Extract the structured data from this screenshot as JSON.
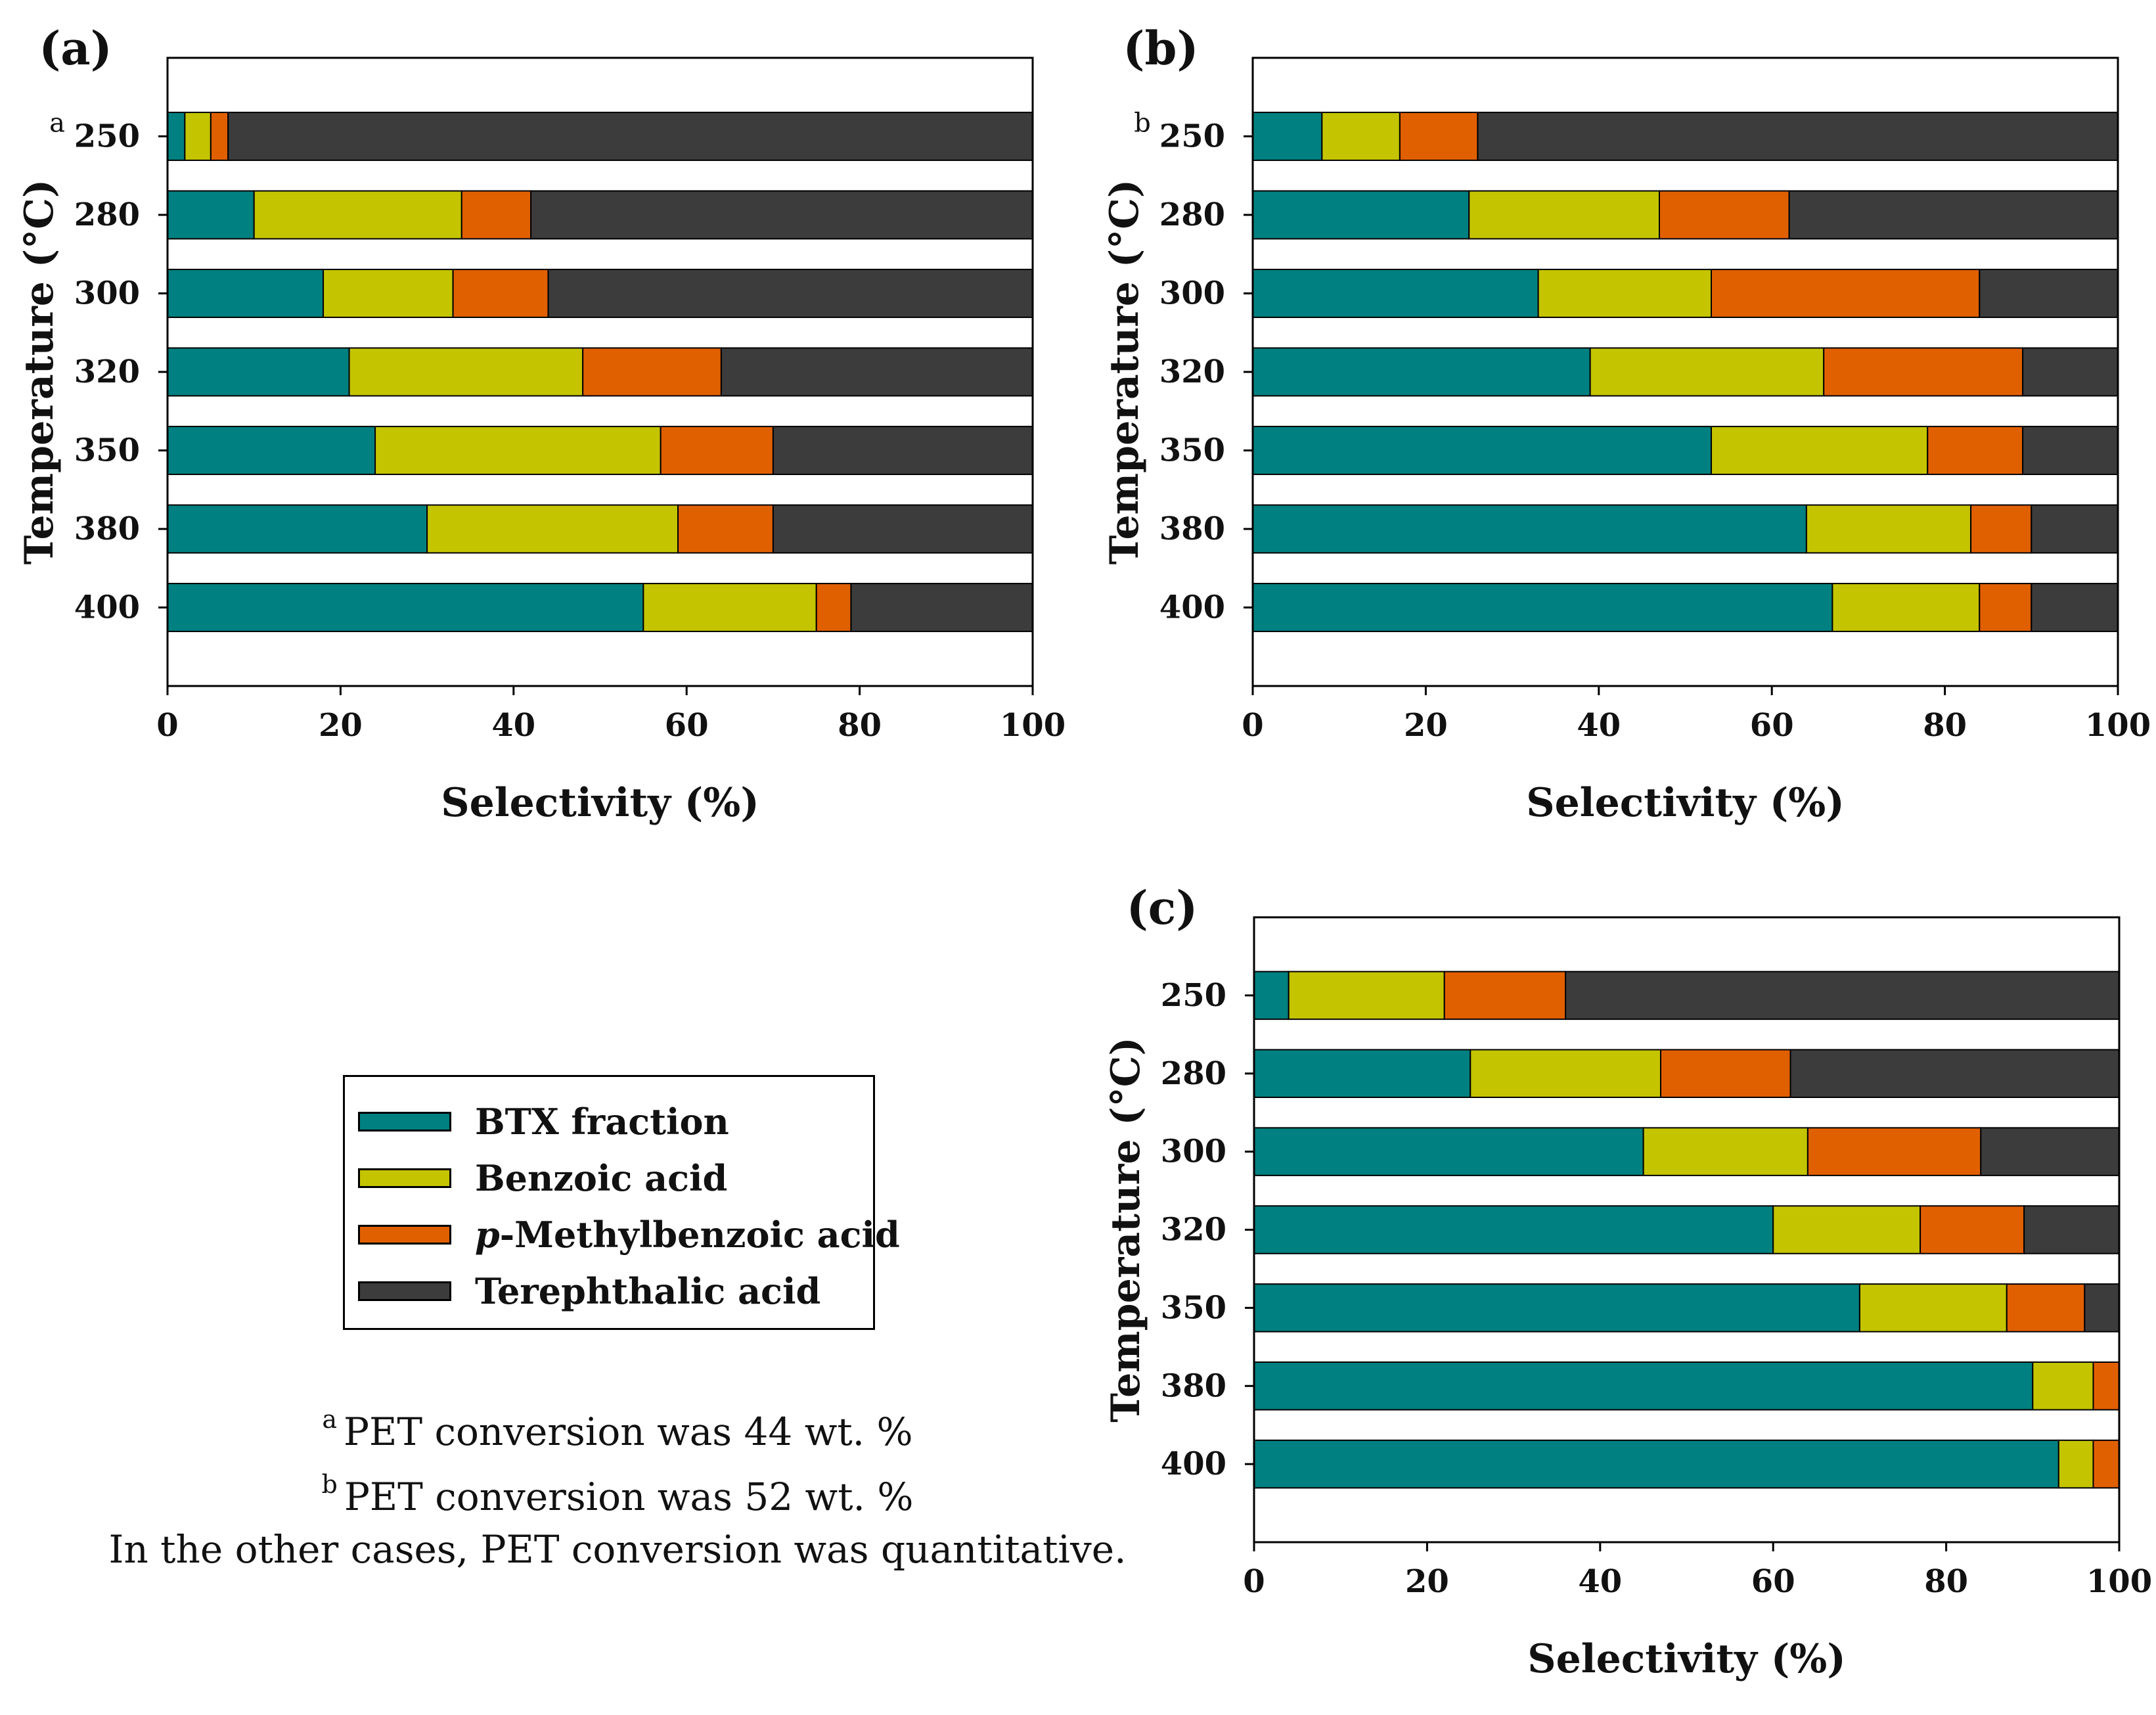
{
  "series_colors": {
    "BTX fraction": "#008080",
    "Benzoic acid": "#C4C400",
    "p-Methylbenzoic acid": "#E06000",
    "Terephthalic acid": "#3C3C3C"
  },
  "legend": {
    "items": [
      {
        "prefix": "",
        "text": "BTX fraction",
        "color": "#008080"
      },
      {
        "prefix": "",
        "text": "Benzoic acid",
        "color": "#C4C400"
      },
      {
        "prefix": "p",
        "text": "-Methylbenzoic acid",
        "color": "#E06000"
      },
      {
        "prefix": "",
        "text": "Terephthalic acid",
        "color": "#3C3C3C"
      }
    ]
  },
  "notes": {
    "a_mark": "a",
    "a_text": "PET conversion was 44 wt. %",
    "b_mark": "b",
    "b_text": "PET conversion was 52 wt. %",
    "other_text": "In the other cases, PET conversion was quantitative."
  },
  "chart_data": [
    {
      "panel": "(a)",
      "type": "bar",
      "orientation": "horizontal",
      "stacked": true,
      "xlabel": "Selectivity (%)",
      "ylabel": "Temperature (°C)",
      "xlim": [
        0,
        100
      ],
      "xticks": [
        "0",
        "20",
        "40",
        "60",
        "80",
        "100"
      ],
      "categories": [
        "250",
        "280",
        "300",
        "320",
        "350",
        "380",
        "400"
      ],
      "category_marks": [
        "a",
        "",
        "",
        "",
        "",
        "",
        ""
      ],
      "series": [
        {
          "name": "BTX fraction",
          "values": [
            2,
            10,
            18,
            21,
            24,
            30,
            55
          ]
        },
        {
          "name": "Benzoic acid",
          "values": [
            3,
            24,
            15,
            27,
            33,
            29,
            20
          ]
        },
        {
          "name": "p-Methylbenzoic acid",
          "values": [
            2,
            8,
            11,
            16,
            13,
            11,
            4
          ]
        },
        {
          "name": "Terephthalic acid",
          "values": [
            93,
            58,
            56,
            36,
            30,
            30,
            21
          ]
        }
      ]
    },
    {
      "panel": "(b)",
      "type": "bar",
      "orientation": "horizontal",
      "stacked": true,
      "xlabel": "Selectivity (%)",
      "ylabel": "Temperature (°C)",
      "xlim": [
        0,
        100
      ],
      "xticks": [
        "0",
        "20",
        "40",
        "60",
        "80",
        "100"
      ],
      "categories": [
        "250",
        "280",
        "300",
        "320",
        "350",
        "380",
        "400"
      ],
      "category_marks": [
        "b",
        "",
        "",
        "",
        "",
        "",
        ""
      ],
      "series": [
        {
          "name": "BTX fraction",
          "values": [
            8,
            25,
            33,
            39,
            53,
            64,
            67
          ]
        },
        {
          "name": "Benzoic acid",
          "values": [
            9,
            22,
            20,
            27,
            25,
            19,
            17
          ]
        },
        {
          "name": "p-Methylbenzoic acid",
          "values": [
            9,
            15,
            31,
            23,
            11,
            7,
            6
          ]
        },
        {
          "name": "Terephthalic acid",
          "values": [
            74,
            38,
            16,
            11,
            11,
            10,
            10
          ]
        }
      ]
    },
    {
      "panel": "(c)",
      "type": "bar",
      "orientation": "horizontal",
      "stacked": true,
      "xlabel": "Selectivity (%)",
      "ylabel": "Temperature (°C)",
      "xlim": [
        0,
        100
      ],
      "xticks": [
        "0",
        "20",
        "40",
        "60",
        "80",
        "100"
      ],
      "categories": [
        "250",
        "280",
        "300",
        "320",
        "350",
        "380",
        "400"
      ],
      "category_marks": [
        "",
        "",
        "",
        "",
        "",
        "",
        ""
      ],
      "series": [
        {
          "name": "BTX fraction",
          "values": [
            4,
            25,
            45,
            60,
            70,
            90,
            93
          ]
        },
        {
          "name": "Benzoic acid",
          "values": [
            18,
            22,
            19,
            17,
            17,
            7,
            4
          ]
        },
        {
          "name": "p-Methylbenzoic acid",
          "values": [
            14,
            15,
            20,
            12,
            9,
            3,
            3
          ]
        },
        {
          "name": "Terephthalic acid",
          "values": [
            64,
            38,
            16,
            11,
            4,
            0,
            0
          ]
        }
      ]
    }
  ]
}
